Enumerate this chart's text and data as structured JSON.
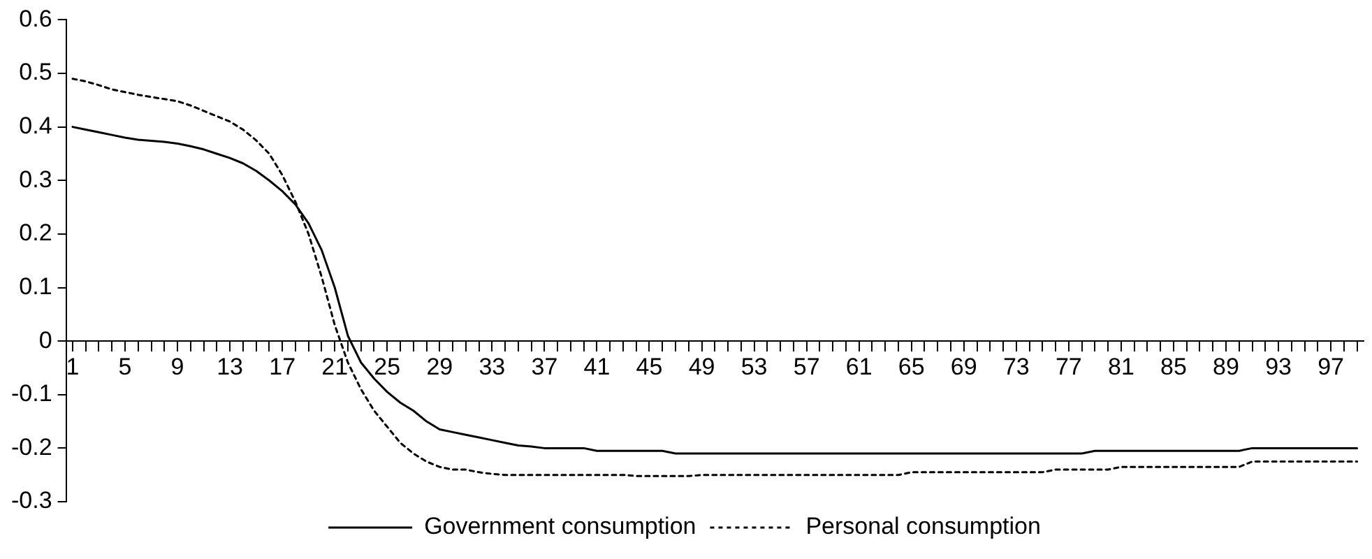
{
  "chart_data": {
    "type": "line",
    "categories": [
      "1",
      null,
      null,
      null,
      "5",
      null,
      null,
      null,
      "9",
      null,
      null,
      null,
      "13",
      null,
      null,
      null,
      "17",
      null,
      null,
      null,
      "21",
      null,
      null,
      null,
      "25",
      null,
      null,
      null,
      "29",
      null,
      null,
      null,
      "33",
      null,
      null,
      null,
      "37",
      null,
      null,
      null,
      "41",
      null,
      null,
      null,
      "45",
      null,
      null,
      null,
      "49",
      null,
      null,
      null,
      "53",
      null,
      null,
      null,
      "57",
      null,
      null,
      null,
      "61",
      null,
      null,
      null,
      "65",
      null,
      null,
      null,
      "69",
      null,
      null,
      null,
      "73",
      null,
      null,
      null,
      "77",
      null,
      null,
      null,
      "81",
      null,
      null,
      null,
      "85",
      null,
      null,
      null,
      "89",
      null,
      null,
      null,
      "93",
      null,
      null,
      null,
      "97",
      null,
      null
    ],
    "series": [
      {
        "name": "Government consumption",
        "color": "#000000",
        "line_style": "solid",
        "values": [
          0.4,
          0.395,
          0.39,
          0.385,
          0.38,
          0.376,
          0.374,
          0.372,
          0.369,
          0.364,
          0.358,
          0.35,
          0.342,
          0.332,
          0.318,
          0.3,
          0.28,
          0.255,
          0.22,
          0.17,
          0.1,
          0.01,
          -0.04,
          -0.07,
          -0.095,
          -0.115,
          -0.13,
          -0.15,
          -0.165,
          -0.17,
          -0.175,
          -0.18,
          -0.185,
          -0.19,
          -0.195,
          -0.197,
          -0.2,
          -0.2,
          -0.2,
          -0.2,
          -0.205,
          -0.205,
          -0.205,
          -0.205,
          -0.205,
          -0.205,
          -0.21,
          -0.21,
          -0.21,
          -0.21,
          -0.21,
          -0.21,
          -0.21,
          -0.21,
          -0.21,
          -0.21,
          -0.21,
          -0.21,
          -0.21,
          -0.21,
          -0.21,
          -0.21,
          -0.21,
          -0.21,
          -0.21,
          -0.21,
          -0.21,
          -0.21,
          -0.21,
          -0.21,
          -0.21,
          -0.21,
          -0.21,
          -0.21,
          -0.21,
          -0.21,
          -0.21,
          -0.21,
          -0.205,
          -0.205,
          -0.205,
          -0.205,
          -0.205,
          -0.205,
          -0.205,
          -0.205,
          -0.205,
          -0.205,
          -0.205,
          -0.205,
          -0.2,
          -0.2,
          -0.2,
          -0.2,
          -0.2,
          -0.2,
          -0.2,
          -0.2,
          -0.2
        ]
      },
      {
        "name": "Personal consumption",
        "color": "#000000",
        "line_style": "dotted",
        "values": [
          0.49,
          0.485,
          0.478,
          0.47,
          0.465,
          0.46,
          0.456,
          0.452,
          0.448,
          0.44,
          0.43,
          0.42,
          0.41,
          0.395,
          0.375,
          0.35,
          0.31,
          0.26,
          0.2,
          0.12,
          0.03,
          -0.04,
          -0.09,
          -0.13,
          -0.16,
          -0.19,
          -0.21,
          -0.225,
          -0.235,
          -0.24,
          -0.24,
          -0.245,
          -0.248,
          -0.25,
          -0.25,
          -0.25,
          -0.25,
          -0.25,
          -0.25,
          -0.25,
          -0.25,
          -0.25,
          -0.25,
          -0.252,
          -0.252,
          -0.252,
          -0.252,
          -0.252,
          -0.25,
          -0.25,
          -0.25,
          -0.25,
          -0.25,
          -0.25,
          -0.25,
          -0.25,
          -0.25,
          -0.25,
          -0.25,
          -0.25,
          -0.25,
          -0.25,
          -0.25,
          -0.25,
          -0.245,
          -0.245,
          -0.245,
          -0.245,
          -0.245,
          -0.245,
          -0.245,
          -0.245,
          -0.245,
          -0.245,
          -0.245,
          -0.24,
          -0.24,
          -0.24,
          -0.24,
          -0.24,
          -0.235,
          -0.235,
          -0.235,
          -0.235,
          -0.235,
          -0.235,
          -0.235,
          -0.235,
          -0.235,
          -0.235,
          -0.225,
          -0.225,
          -0.225,
          -0.225,
          -0.225,
          -0.225,
          -0.225,
          -0.225,
          -0.225
        ]
      }
    ],
    "ylim": [
      -0.3,
      0.6
    ],
    "yticks": [
      -0.3,
      -0.2,
      -0.1,
      0,
      0.1,
      0.2,
      0.3,
      0.4,
      0.5,
      0.6
    ],
    "grid": false,
    "legend": "bottom",
    "marker": "none"
  }
}
